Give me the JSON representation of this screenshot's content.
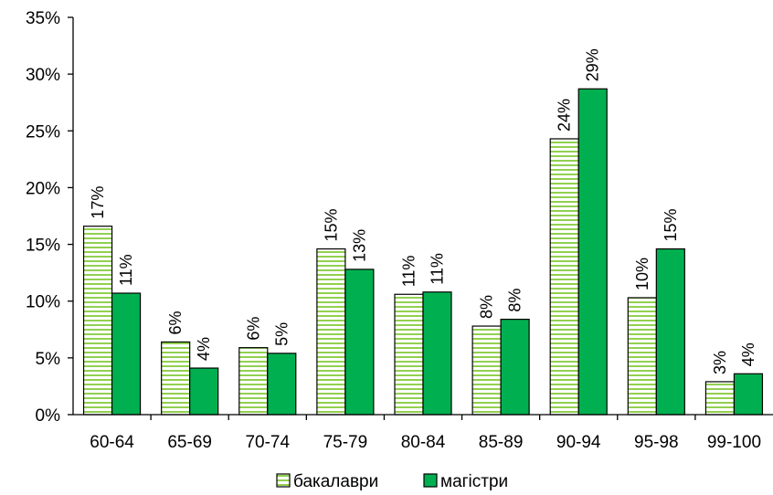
{
  "chart_data": {
    "type": "bar",
    "categories": [
      "60-64",
      "65-69",
      "70-74",
      "75-79",
      "80-84",
      "85-89",
      "90-94",
      "95-98",
      "99-100"
    ],
    "series": [
      {
        "name": "бакалаври",
        "values": [
          16.6,
          6.4,
          5.9,
          14.6,
          10.6,
          7.8,
          24.3,
          10.3,
          2.9
        ],
        "labels": [
          "17%",
          "6%",
          "6%",
          "15%",
          "11%",
          "8%",
          "24%",
          "10%",
          "3%"
        ],
        "color": "#92d050",
        "pattern": "horizontal-stripes"
      },
      {
        "name": "магістри",
        "values": [
          10.7,
          4.1,
          5.4,
          12.8,
          10.8,
          8.4,
          28.7,
          14.6,
          3.6
        ],
        "labels": [
          "11%",
          "4%",
          "5%",
          "13%",
          "11%",
          "8%",
          "29%",
          "15%",
          "4%"
        ],
        "color": "#00b050",
        "pattern": "solid"
      }
    ],
    "ylim": [
      0,
      35
    ],
    "yticks": [
      "0%",
      "5%",
      "10%",
      "15%",
      "20%",
      "25%",
      "30%",
      "35%"
    ],
    "ytick_values": [
      0,
      5,
      10,
      15,
      20,
      25,
      30,
      35
    ],
    "grid": false,
    "legend": "bottom-center"
  }
}
